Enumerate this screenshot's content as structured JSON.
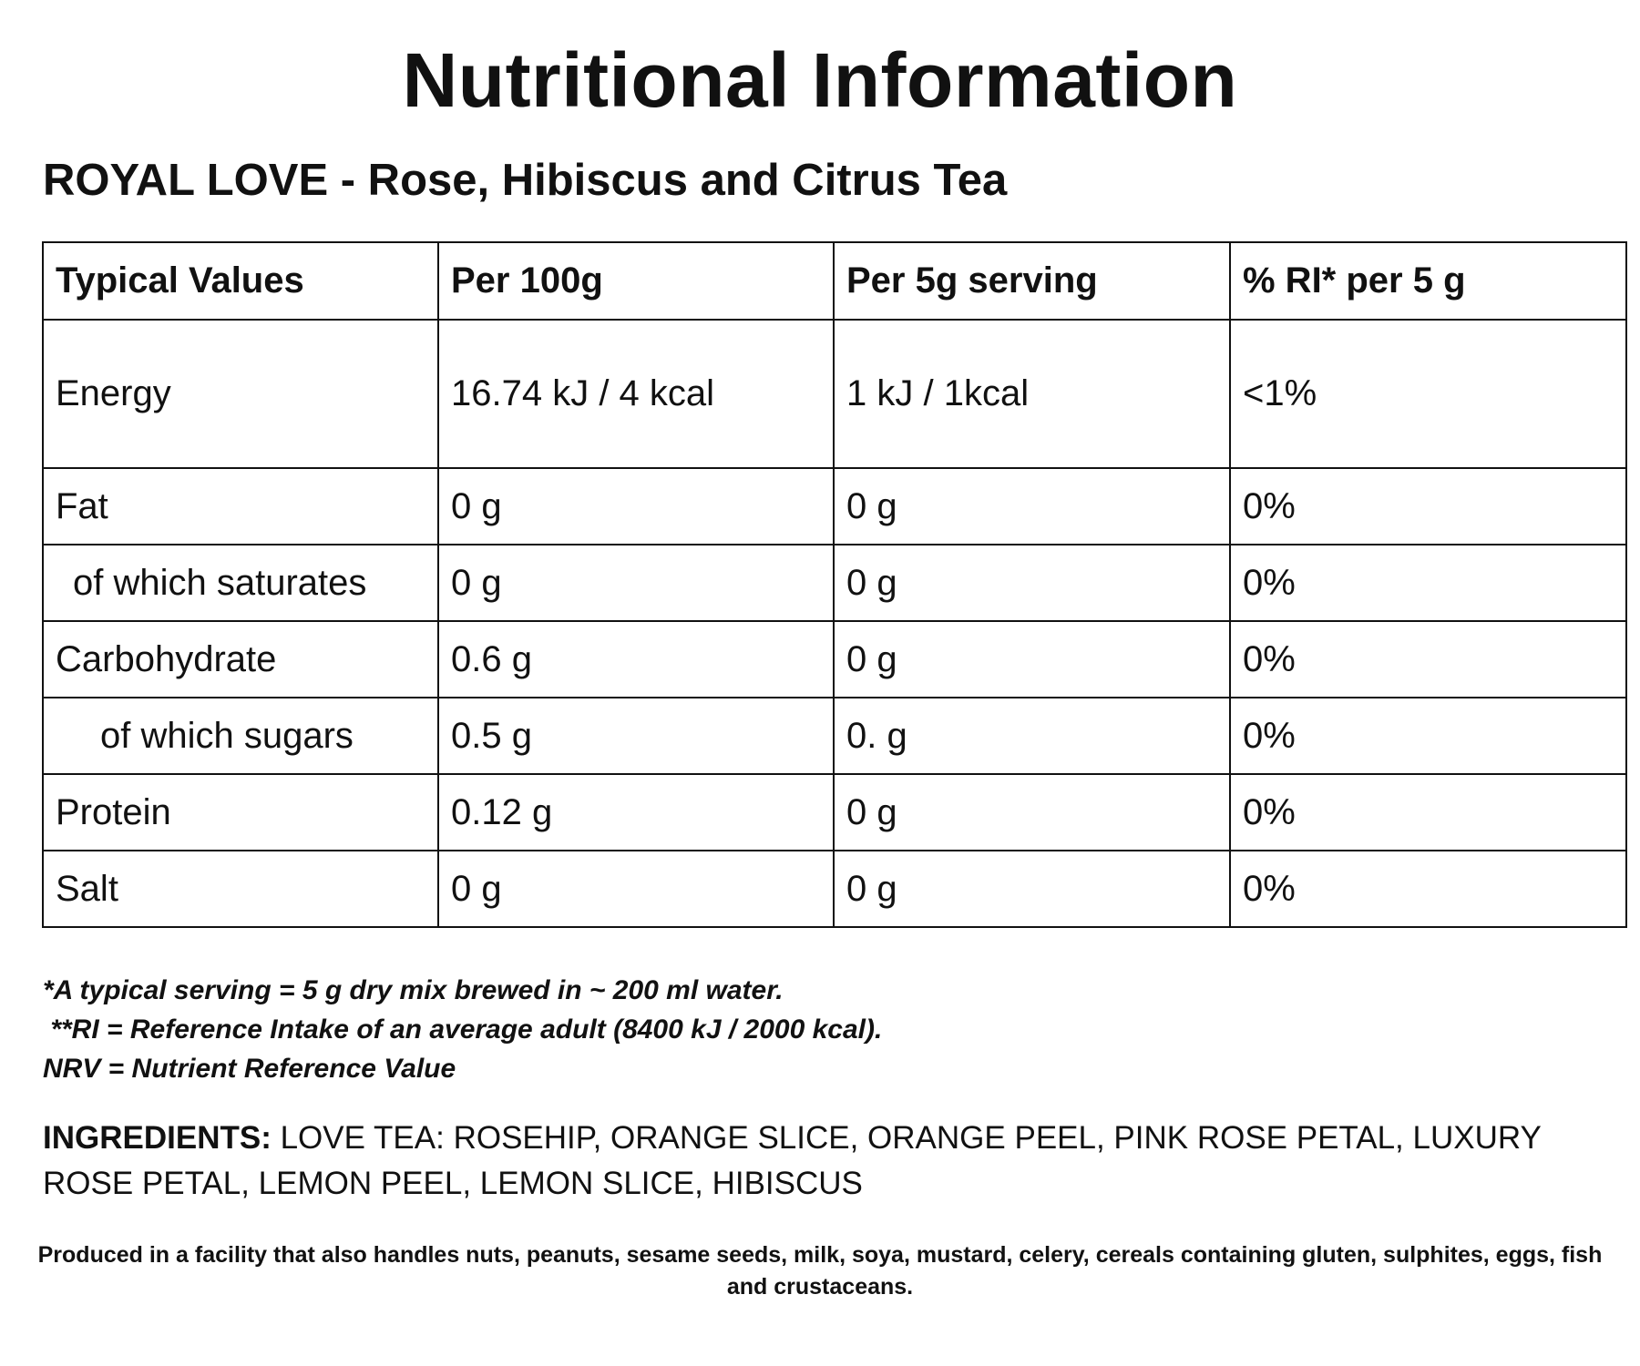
{
  "title": "Nutritional Information",
  "product": "ROYAL LOVE - Rose, Hibiscus and Citrus Tea",
  "table": {
    "headers": [
      "Typical Values",
      "Per 100g",
      "Per 5g serving",
      "% RI* per 5 g"
    ],
    "rows": [
      [
        "Energy",
        "16.74 kJ / 4 kcal",
        "1 kJ / 1kcal",
        "<1%"
      ],
      [
        "Fat",
        "0 g",
        "0 g",
        "0%"
      ],
      [
        "of which saturates",
        "0 g",
        "0 g",
        "0%"
      ],
      [
        "Carbohydrate",
        "0.6 g",
        "0 g",
        "0%"
      ],
      [
        "of which sugars",
        "0.5 g",
        "0. g",
        "0%"
      ],
      [
        "Protein",
        "0.12 g",
        "0 g",
        "0%"
      ],
      [
        "Salt",
        "0 g",
        "0 g",
        "0%"
      ]
    ]
  },
  "notes": [
    "*A typical serving = 5 g dry mix brewed in ~ 200 ml water.",
    " **RI = Reference Intake of an average adult (8400 kJ / 2000 kcal).",
    "NRV = Nutrient Reference Value"
  ],
  "ingredients": {
    "label": "INGREDIENTS:",
    "text": " LOVE TEA: ROSEHIP, ORANGE SLICE, ORANGE PEEL, PINK ROSE PETAL, LUXURY ROSE PETAL, LEMON PEEL, LEMON SLICE, HIBISCUS"
  },
  "facility": "Produced in a facility that also handles nuts, peanuts, sesame seeds, milk, soya, mustard, celery, cereals containing gluten, sulphites, eggs, fish and crustaceans."
}
